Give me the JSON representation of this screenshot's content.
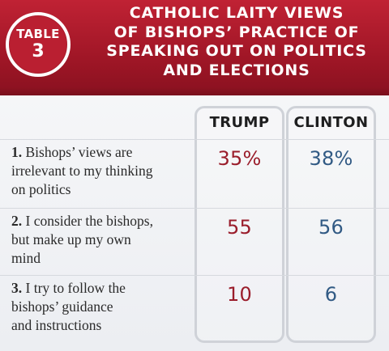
{
  "header": {
    "badge_word": "TABLE",
    "badge_number": "3",
    "title_lines": [
      "CATHOLIC LAITY VIEWS",
      "OF BISHOPS’ PRACTICE OF",
      "SPEAKING OUT ON POLITICS",
      "AND ELECTIONS"
    ]
  },
  "chart_data": {
    "type": "table",
    "title": "CATHOLIC LAITY VIEWS OF BISHOPS’ PRACTICE OF SPEAKING OUT ON POLITICS AND ELECTIONS",
    "columns": [
      "TRUMP",
      "CLINTON"
    ],
    "rows": [
      {
        "number": "1.",
        "label_lines": [
          "Bishops’ views are",
          "irrelevant to my thinking",
          "on politics"
        ],
        "values": [
          "35%",
          "38%"
        ]
      },
      {
        "number": "2.",
        "label_lines": [
          "I consider the bishops,",
          "but make up my own",
          "mind"
        ],
        "values": [
          "55",
          "56"
        ]
      },
      {
        "number": "3.",
        "label_lines": [
          "I try to follow the",
          "bishops’ guidance",
          "and instructions"
        ],
        "values": [
          "10",
          "6"
        ]
      }
    ]
  },
  "colors": {
    "header_red": "#b11d2f",
    "trump_red": "#9a1d2b",
    "clinton_blue": "#315a84",
    "body_gray": "#f0f1f4",
    "frame_gray": "#cfd2d8"
  }
}
